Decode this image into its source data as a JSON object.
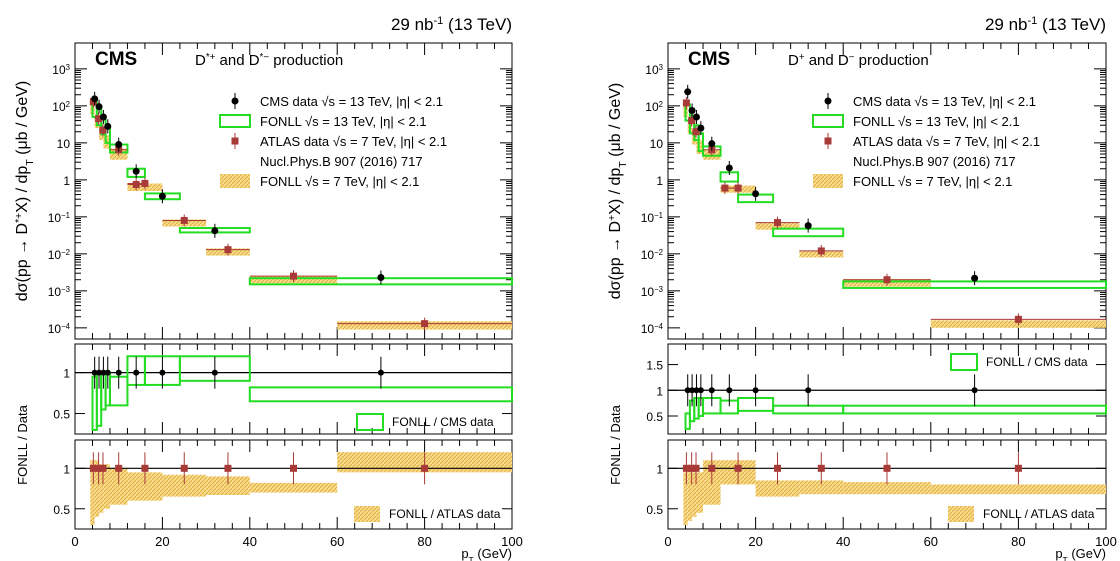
{
  "chart_data": [
    {
      "type": "scatter",
      "lumi_label": "29 nb",
      "lumi_exp": "-1",
      "energy_label": "(13 TeV)",
      "experiment": "CMS",
      "process_label": [
        "D",
        "*+",
        " and D",
        "*−",
        " production"
      ],
      "ylabel_top": "dσ(pp → D*+X) / dpT (μb / GeV)",
      "ylabel_top_parts": [
        "dσ(pp → D",
        "*+",
        "X) / dp",
        "T",
        " (μb / GeV)"
      ],
      "ylabel_ratio": "FONLL / Data",
      "xlabel": "pT (GeV)",
      "xlabel_parts": [
        "p",
        "T",
        " (GeV)"
      ],
      "xlim": [
        0,
        100
      ],
      "ylim_top": [
        5e-05,
        5000
      ],
      "yscale_top": "log",
      "xticks": [
        "0",
        "20",
        "40",
        "60",
        "80",
        "100"
      ],
      "ylim_ratio1": [
        0.25,
        1.35
      ],
      "yticks_ratio1": [
        "0.5",
        "1"
      ],
      "ylim_ratio2": [
        0.25,
        1.35
      ],
      "yticks_ratio2": [
        "0.5",
        "1"
      ],
      "legend": [
        {
          "label": "CMS data √s = 13 TeV, |η| < 2.1",
          "style": "cms"
        },
        {
          "label": "FONLL √s = 13 TeV, |η| < 2.1",
          "style": "fonll13"
        },
        {
          "label": "ATLAS data √s = 7 TeV, |η| < 2.1",
          "style": "atlas"
        },
        {
          "label": "Nucl.Phys.B 907 (2016) 717",
          "style": "none"
        },
        {
          "label": "FONLL √s = 7 TeV, |η| < 2.1",
          "style": "fonll7"
        }
      ],
      "cms_data": [
        {
          "x": 4.5,
          "y": 155
        },
        {
          "x": 5.5,
          "y": 95
        },
        {
          "x": 6.5,
          "y": 50
        },
        {
          "x": 7.5,
          "y": 28
        },
        {
          "x": 10,
          "y": 9
        },
        {
          "x": 14,
          "y": 1.7
        },
        {
          "x": 20,
          "y": 0.36
        },
        {
          "x": 32,
          "y": 0.042
        },
        {
          "x": 70,
          "y": 0.0023
        }
      ],
      "fonll13": [
        {
          "xlo": 4,
          "xhi": 5,
          "ylo": 50,
          "yhi": 150
        },
        {
          "xlo": 5,
          "xhi": 6,
          "ylo": 30,
          "yhi": 90
        },
        {
          "xlo": 6,
          "xhi": 7,
          "ylo": 17,
          "yhi": 50
        },
        {
          "xlo": 7,
          "xhi": 8,
          "ylo": 10,
          "yhi": 28
        },
        {
          "xlo": 8,
          "xhi": 12,
          "ylo": 5.5,
          "yhi": 9
        },
        {
          "xlo": 12,
          "xhi": 16,
          "ylo": 1.2,
          "yhi": 2
        },
        {
          "xlo": 16,
          "xhi": 24,
          "ylo": 0.3,
          "yhi": 0.43
        },
        {
          "xlo": 24,
          "xhi": 40,
          "ylo": 0.038,
          "yhi": 0.05
        },
        {
          "xlo": 40,
          "xhi": 100,
          "ylo": 0.0015,
          "yhi": 0.0022
        }
      ],
      "atlas_data": [
        {
          "x": 4.2,
          "y": 130
        },
        {
          "x": 5.4,
          "y": 45
        },
        {
          "x": 6.4,
          "y": 22
        },
        {
          "x": 10,
          "y": 6.5
        },
        {
          "x": 14,
          "y": 0.75
        },
        {
          "x": 16,
          "y": 0.8
        },
        {
          "x": 25,
          "y": 0.08
        },
        {
          "x": 35,
          "y": 0.013
        },
        {
          "x": 50,
          "y": 0.0025
        },
        {
          "x": 80,
          "y": 0.00013
        }
      ],
      "fonll7": [
        {
          "xlo": 3.5,
          "xhi": 4.5,
          "ylo": 60,
          "yhi": 130
        },
        {
          "xlo": 4.5,
          "xhi": 5.5,
          "ylo": 25,
          "yhi": 60
        },
        {
          "xlo": 5.5,
          "xhi": 6.5,
          "ylo": 12,
          "yhi": 28
        },
        {
          "xlo": 6.5,
          "xhi": 8,
          "ylo": 7,
          "yhi": 16
        },
        {
          "xlo": 8,
          "xhi": 12,
          "ylo": 3.5,
          "yhi": 7
        },
        {
          "xlo": 12,
          "xhi": 16,
          "ylo": 0.5,
          "yhi": 0.8
        },
        {
          "xlo": 16,
          "xhi": 20,
          "ylo": 0.5,
          "yhi": 0.8
        },
        {
          "xlo": 20,
          "xhi": 30,
          "ylo": 0.055,
          "yhi": 0.085
        },
        {
          "xlo": 30,
          "xhi": 40,
          "ylo": 0.009,
          "yhi": 0.014
        },
        {
          "xlo": 40,
          "xhi": 60,
          "ylo": 0.0016,
          "yhi": 0.0026
        },
        {
          "xlo": 60,
          "xhi": 100,
          "ylo": 9e-05,
          "yhi": 0.00015
        }
      ],
      "ratio_cms": {
        "points": [
          {
            "x": 4.5,
            "y": 1
          },
          {
            "x": 5.5,
            "y": 1
          },
          {
            "x": 6.5,
            "y": 1
          },
          {
            "x": 7.5,
            "y": 1
          },
          {
            "x": 10,
            "y": 1
          },
          {
            "x": 14,
            "y": 1
          },
          {
            "x": 20,
            "y": 1
          },
          {
            "x": 32,
            "y": 1
          },
          {
            "x": 70,
            "y": 1
          }
        ],
        "boxes": [
          {
            "xlo": 4,
            "xhi": 5,
            "ylo": 0.3,
            "yhi": 0.95
          },
          {
            "xlo": 5,
            "xhi": 6,
            "ylo": 0.35,
            "yhi": 1.0
          },
          {
            "xlo": 6,
            "xhi": 7,
            "ylo": 0.55,
            "yhi": 1.0
          },
          {
            "xlo": 7,
            "xhi": 8,
            "ylo": 0.6,
            "yhi": 1.0
          },
          {
            "xlo": 8,
            "xhi": 12,
            "ylo": 0.6,
            "yhi": 0.95
          },
          {
            "xlo": 12,
            "xhi": 16,
            "ylo": 0.85,
            "yhi": 1.2
          },
          {
            "xlo": 16,
            "xhi": 24,
            "ylo": 0.85,
            "yhi": 1.2
          },
          {
            "xlo": 24,
            "xhi": 40,
            "ylo": 0.9,
            "yhi": 1.2
          },
          {
            "xlo": 40,
            "xhi": 100,
            "ylo": 0.65,
            "yhi": 0.82
          }
        ],
        "legend": "FONLL / CMS data"
      },
      "ratio_atlas": {
        "points": [
          {
            "x": 4.2,
            "y": 1
          },
          {
            "x": 5.4,
            "y": 1
          },
          {
            "x": 6.4,
            "y": 1
          },
          {
            "x": 10,
            "y": 1
          },
          {
            "x": 16,
            "y": 1
          },
          {
            "x": 25,
            "y": 1
          },
          {
            "x": 35,
            "y": 1
          },
          {
            "x": 50,
            "y": 1
          },
          {
            "x": 80,
            "y": 1
          }
        ],
        "boxes": [
          {
            "xlo": 3.5,
            "xhi": 4.5,
            "ylo": 0.3,
            "yhi": 1.1
          },
          {
            "xlo": 4.5,
            "xhi": 5.5,
            "ylo": 0.4,
            "yhi": 1.1
          },
          {
            "xlo": 5.5,
            "xhi": 6.5,
            "ylo": 0.45,
            "yhi": 1.05
          },
          {
            "xlo": 6.5,
            "xhi": 8,
            "ylo": 0.5,
            "yhi": 1.05
          },
          {
            "xlo": 8,
            "xhi": 12,
            "ylo": 0.55,
            "yhi": 1.0
          },
          {
            "xlo": 12,
            "xhi": 20,
            "ylo": 0.6,
            "yhi": 0.95
          },
          {
            "xlo": 20,
            "xhi": 30,
            "ylo": 0.65,
            "yhi": 0.92
          },
          {
            "xlo": 30,
            "xhi": 40,
            "ylo": 0.67,
            "yhi": 0.9
          },
          {
            "xlo": 40,
            "xhi": 60,
            "ylo": 0.7,
            "yhi": 0.82
          },
          {
            "xlo": 60,
            "xhi": 100,
            "ylo": 0.95,
            "yhi": 1.2
          }
        ],
        "legend": "FONLL / ATLAS data"
      }
    },
    {
      "type": "scatter",
      "lumi_label": "29 nb",
      "lumi_exp": "-1",
      "energy_label": "(13 TeV)",
      "experiment": "CMS",
      "process_label": [
        "D",
        "+",
        " and D",
        "−",
        " production"
      ],
      "ylabel_top": "dσ(pp → D+X) / dpT (μb / GeV)",
      "ylabel_top_parts": [
        "dσ(pp → D",
        "+",
        "X) / dp",
        "T",
        " (μb / GeV)"
      ],
      "ylabel_ratio": "FONLL / Data",
      "xlabel": "pT (GeV)",
      "xlabel_parts": [
        "p",
        "T",
        " (GeV)"
      ],
      "xlim": [
        0,
        100
      ],
      "ylim_top": [
        5e-05,
        5000
      ],
      "yscale_top": "log",
      "xticks": [
        "0",
        "20",
        "40",
        "60",
        "80",
        "100"
      ],
      "ylim_ratio1": [
        0.15,
        1.9
      ],
      "yticks_ratio1": [
        "0.5",
        "1",
        "1.5"
      ],
      "ylim_ratio2": [
        0.25,
        1.35
      ],
      "yticks_ratio2": [
        "0.5",
        "1"
      ],
      "legend": [
        {
          "label": "CMS data √s = 13 TeV, |η| < 2.1",
          "style": "cms"
        },
        {
          "label": "FONLL √s = 13 TeV, |η| < 2.1",
          "style": "fonll13"
        },
        {
          "label": "ATLAS data √s = 7 TeV, |η| < 2.1",
          "style": "atlas"
        },
        {
          "label": "Nucl.Phys.B 907 (2016) 717",
          "style": "none"
        },
        {
          "label": "FONLL √s = 7 TeV, |η| < 2.1",
          "style": "fonll7"
        }
      ],
      "cms_data": [
        {
          "x": 4.5,
          "y": 240
        },
        {
          "x": 5.5,
          "y": 75
        },
        {
          "x": 6.5,
          "y": 50
        },
        {
          "x": 7.5,
          "y": 25
        },
        {
          "x": 10,
          "y": 9.5
        },
        {
          "x": 14,
          "y": 2.1
        },
        {
          "x": 20,
          "y": 0.42
        },
        {
          "x": 32,
          "y": 0.058
        },
        {
          "x": 70,
          "y": 0.0022
        }
      ],
      "fonll13": [
        {
          "xlo": 4,
          "xhi": 5,
          "ylo": 40,
          "yhi": 110
        },
        {
          "xlo": 5,
          "xhi": 6,
          "ylo": 18,
          "yhi": 55
        },
        {
          "xlo": 6,
          "xhi": 7,
          "ylo": 12,
          "yhi": 30
        },
        {
          "xlo": 7,
          "xhi": 8,
          "ylo": 6,
          "yhi": 18
        },
        {
          "xlo": 8,
          "xhi": 12,
          "ylo": 4.5,
          "yhi": 8
        },
        {
          "xlo": 12,
          "xhi": 16,
          "ylo": 0.9,
          "yhi": 1.6
        },
        {
          "xlo": 16,
          "xhi": 24,
          "ylo": 0.25,
          "yhi": 0.4
        },
        {
          "xlo": 24,
          "xhi": 40,
          "ylo": 0.03,
          "yhi": 0.048
        },
        {
          "xlo": 40,
          "xhi": 100,
          "ylo": 0.0012,
          "yhi": 0.0018
        }
      ],
      "atlas_data": [
        {
          "x": 4.2,
          "y": 120
        },
        {
          "x": 5.4,
          "y": 40
        },
        {
          "x": 6.4,
          "y": 20
        },
        {
          "x": 10,
          "y": 6.5
        },
        {
          "x": 13,
          "y": 0.6
        },
        {
          "x": 16,
          "y": 0.6
        },
        {
          "x": 25,
          "y": 0.07
        },
        {
          "x": 35,
          "y": 0.012
        },
        {
          "x": 50,
          "y": 0.002
        },
        {
          "x": 80,
          "y": 0.00017
        }
      ],
      "fonll7": [
        {
          "xlo": 3.5,
          "xhi": 4.5,
          "ylo": 50,
          "yhi": 120
        },
        {
          "xlo": 4.5,
          "xhi": 5.5,
          "ylo": 18,
          "yhi": 45
        },
        {
          "xlo": 5.5,
          "xhi": 6.5,
          "ylo": 9,
          "yhi": 22
        },
        {
          "xlo": 6.5,
          "xhi": 8,
          "ylo": 5,
          "yhi": 12
        },
        {
          "xlo": 8,
          "xhi": 12,
          "ylo": 3.5,
          "yhi": 6.5
        },
        {
          "xlo": 12,
          "xhi": 16,
          "ylo": 0.45,
          "yhi": 0.7
        },
        {
          "xlo": 16,
          "xhi": 20,
          "ylo": 0.45,
          "yhi": 0.7
        },
        {
          "xlo": 20,
          "xhi": 30,
          "ylo": 0.045,
          "yhi": 0.07
        },
        {
          "xlo": 30,
          "xhi": 40,
          "ylo": 0.008,
          "yhi": 0.012
        },
        {
          "xlo": 40,
          "xhi": 60,
          "ylo": 0.0013,
          "yhi": 0.0021
        },
        {
          "xlo": 60,
          "xhi": 100,
          "ylo": 0.0001,
          "yhi": 0.00016
        }
      ],
      "ratio_cms": {
        "points": [
          {
            "x": 4.5,
            "y": 1
          },
          {
            "x": 5.5,
            "y": 1
          },
          {
            "x": 6.5,
            "y": 1
          },
          {
            "x": 7.5,
            "y": 1
          },
          {
            "x": 10,
            "y": 1
          },
          {
            "x": 14,
            "y": 1
          },
          {
            "x": 20,
            "y": 1
          },
          {
            "x": 32,
            "y": 1
          },
          {
            "x": 70,
            "y": 1
          }
        ],
        "boxes": [
          {
            "xlo": 4,
            "xhi": 5,
            "ylo": 0.25,
            "yhi": 0.55
          },
          {
            "xlo": 5,
            "xhi": 6,
            "ylo": 0.4,
            "yhi": 0.8
          },
          {
            "xlo": 6,
            "xhi": 7,
            "ylo": 0.45,
            "yhi": 0.85
          },
          {
            "xlo": 7,
            "xhi": 8,
            "ylo": 0.5,
            "yhi": 0.85
          },
          {
            "xlo": 8,
            "xhi": 12,
            "ylo": 0.55,
            "yhi": 0.85
          },
          {
            "xlo": 12,
            "xhi": 16,
            "ylo": 0.55,
            "yhi": 0.8
          },
          {
            "xlo": 16,
            "xhi": 24,
            "ylo": 0.6,
            "yhi": 0.85
          },
          {
            "xlo": 24,
            "xhi": 40,
            "ylo": 0.55,
            "yhi": 0.7
          },
          {
            "xlo": 40,
            "xhi": 100,
            "ylo": 0.55,
            "yhi": 0.7
          }
        ],
        "legend": "FONLL / CMS data"
      },
      "ratio_atlas": {
        "points": [
          {
            "x": 4.2,
            "y": 1
          },
          {
            "x": 5.4,
            "y": 1
          },
          {
            "x": 6.4,
            "y": 1
          },
          {
            "x": 10,
            "y": 1
          },
          {
            "x": 16,
            "y": 1
          },
          {
            "x": 25,
            "y": 1
          },
          {
            "x": 35,
            "y": 1
          },
          {
            "x": 50,
            "y": 1
          },
          {
            "x": 80,
            "y": 1
          }
        ],
        "boxes": [
          {
            "xlo": 3.5,
            "xhi": 4.5,
            "ylo": 0.3,
            "yhi": 0.95
          },
          {
            "xlo": 4.5,
            "xhi": 5.5,
            "ylo": 0.35,
            "yhi": 1.0
          },
          {
            "xlo": 5.5,
            "xhi": 6.5,
            "ylo": 0.4,
            "yhi": 0.95
          },
          {
            "xlo": 6.5,
            "xhi": 8,
            "ylo": 0.45,
            "yhi": 0.95
          },
          {
            "xlo": 8,
            "xhi": 12,
            "ylo": 0.55,
            "yhi": 1.1
          },
          {
            "xlo": 12,
            "xhi": 20,
            "ylo": 0.8,
            "yhi": 1.1
          },
          {
            "xlo": 20,
            "xhi": 30,
            "ylo": 0.65,
            "yhi": 0.85
          },
          {
            "xlo": 30,
            "xhi": 40,
            "ylo": 0.68,
            "yhi": 0.85
          },
          {
            "xlo": 40,
            "xhi": 60,
            "ylo": 0.68,
            "yhi": 0.83
          },
          {
            "xlo": 60,
            "xhi": 100,
            "ylo": 0.68,
            "yhi": 0.8
          }
        ],
        "legend": "FONLL / ATLAS data"
      }
    }
  ],
  "colors": {
    "cms_marker": "#000000",
    "atlas_marker": "#a83a38",
    "fonll13_line": "#22dd22",
    "fonll7_fill": "#f3d27a",
    "fonll7_fill_dark": "#e9b84a"
  }
}
